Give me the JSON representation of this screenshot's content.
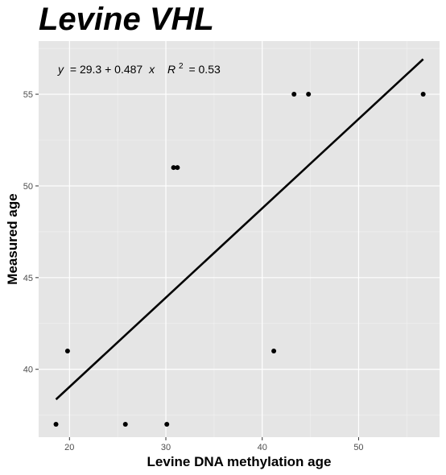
{
  "chart_data": {
    "type": "scatter",
    "title": "Levine VHL",
    "xlabel": "Levine DNA methylation age",
    "ylabel": "Measured age",
    "xlim": [
      16.8,
      58.4
    ],
    "ylim": [
      36.3,
      57.9
    ],
    "xticks": [
      20,
      30,
      40,
      50
    ],
    "yticks": [
      40,
      45,
      50,
      55
    ],
    "grid": true,
    "points": [
      {
        "x": 18.6,
        "y": 37
      },
      {
        "x": 19.8,
        "y": 41
      },
      {
        "x": 25.8,
        "y": 37
      },
      {
        "x": 30.1,
        "y": 37
      },
      {
        "x": 30.8,
        "y": 51
      },
      {
        "x": 31.2,
        "y": 51
      },
      {
        "x": 41.2,
        "y": 41
      },
      {
        "x": 43.3,
        "y": 55
      },
      {
        "x": 44.8,
        "y": 55
      },
      {
        "x": 56.7,
        "y": 55
      }
    ],
    "fit_line": {
      "intercept": 29.3,
      "slope": 0.487,
      "x_range": [
        18.6,
        56.7
      ]
    },
    "annotation": {
      "y_var": "y",
      "eq_rhs": "= 29.3 + 0.487",
      "x_var": "x",
      "r_label": "R",
      "r_exp": "2",
      "r_value": "= 0.53"
    }
  }
}
